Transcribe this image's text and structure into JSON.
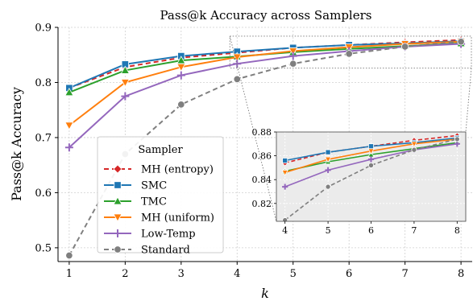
{
  "chart_data": {
    "type": "line",
    "title": "Pass@k Accuracy across Samplers",
    "xlabel": "k",
    "ylabel": "Pass@k Accuracy",
    "x": [
      1,
      2,
      3,
      4,
      5,
      6,
      7,
      8
    ],
    "xlim": [
      0.8,
      8.2
    ],
    "ylim": [
      0.475,
      0.9
    ],
    "xticks": [
      "1",
      "2",
      "3",
      "4",
      "5",
      "6",
      "7",
      "8"
    ],
    "yticks": [
      "0.5",
      "0.6",
      "0.7",
      "0.8",
      "0.9"
    ],
    "grid": true,
    "legend": {
      "title": "Sampler",
      "placement": "lower-left"
    },
    "series": [
      {
        "name": "MH (entropy)",
        "color": "#d62728",
        "marker": "diamond",
        "linestyle": "dashed",
        "values": [
          0.79,
          0.828,
          0.845,
          0.854,
          0.863,
          0.868,
          0.873,
          0.877
        ]
      },
      {
        "name": "SMC",
        "color": "#1f77b4",
        "marker": "square",
        "linestyle": "solid",
        "values": [
          0.79,
          0.833,
          0.848,
          0.856,
          0.863,
          0.868,
          0.871,
          0.875
        ]
      },
      {
        "name": "TMC",
        "color": "#2ca02c",
        "marker": "triangle",
        "linestyle": "solid",
        "values": [
          0.782,
          0.822,
          0.84,
          0.847,
          0.855,
          0.861,
          0.866,
          0.871
        ]
      },
      {
        "name": "MH (uniform)",
        "color": "#ff7f0e",
        "marker": "triangle-down",
        "linestyle": "solid",
        "values": [
          0.722,
          0.8,
          0.828,
          0.846,
          0.857,
          0.864,
          0.87,
          0.874
        ]
      },
      {
        "name": "Low-Temp",
        "color": "#9467bd",
        "marker": "plus",
        "linestyle": "solid",
        "values": [
          0.682,
          0.775,
          0.813,
          0.834,
          0.848,
          0.857,
          0.865,
          0.87
        ]
      },
      {
        "name": "Standard",
        "color": "#7f7f7f",
        "marker": "circle",
        "linestyle": "dashed",
        "values": [
          0.486,
          0.67,
          0.76,
          0.806,
          0.834,
          0.852,
          0.865,
          0.874
        ]
      }
    ],
    "inset": {
      "x_range": [
        4,
        8
      ],
      "xlim": [
        3.8,
        8.2
      ],
      "ylim": [
        0.805,
        0.88
      ],
      "xticks": [
        "4",
        "5",
        "6",
        "7",
        "8"
      ],
      "yticks": [
        "0.82",
        "0.84",
        "0.86",
        "0.88"
      ],
      "background": "#ebebeb"
    }
  }
}
